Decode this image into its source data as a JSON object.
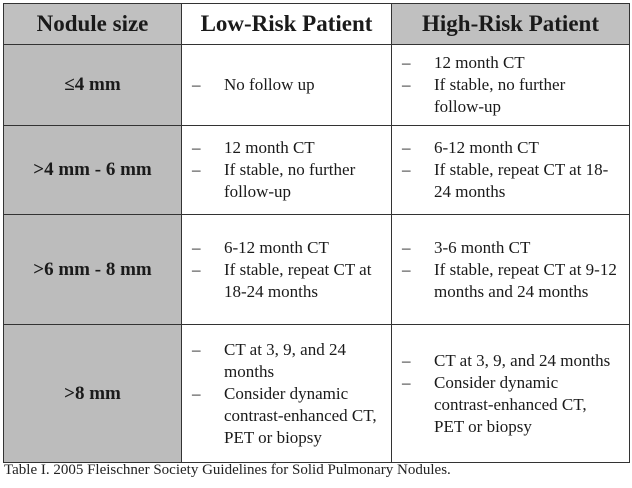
{
  "table": {
    "headers": {
      "size": "Nodule size",
      "low": "Low-Risk Patient",
      "high": "High-Risk Patient"
    },
    "bullet_mark": "–",
    "rows": [
      {
        "size": "≤4 mm",
        "low": [
          "No follow up"
        ],
        "high": [
          "12 month CT",
          "If stable, no further follow-up"
        ]
      },
      {
        "size": ">4 mm - 6 mm",
        "low": [
          "12 month CT",
          "If stable, no further follow-up"
        ],
        "high": [
          "6-12 month CT",
          "If stable, repeat CT at 18-24 months"
        ]
      },
      {
        "size": ">6 mm - 8 mm",
        "low": [
          "6-12 month CT",
          "If stable, repeat CT at 18-24 months"
        ],
        "high": [
          "3-6 month CT",
          "If stable, repeat CT at 9-12 months and 24 months"
        ]
      },
      {
        "size": ">8 mm",
        "low": [
          "CT at 3, 9, and 24 months",
          "Consider dynamic contrast-enhanced CT, PET or biopsy"
        ],
        "high": [
          "CT at 3, 9, and 24 months",
          "Consider dynamic contrast-enhanced CT, PET or biopsy"
        ]
      }
    ]
  },
  "caption": "Table I. 2005 Fleischner Society Guidelines for Solid Pulmonary Nodules.",
  "colors": {
    "shaded_cell": "#bcbcbc",
    "border": "#333333"
  }
}
